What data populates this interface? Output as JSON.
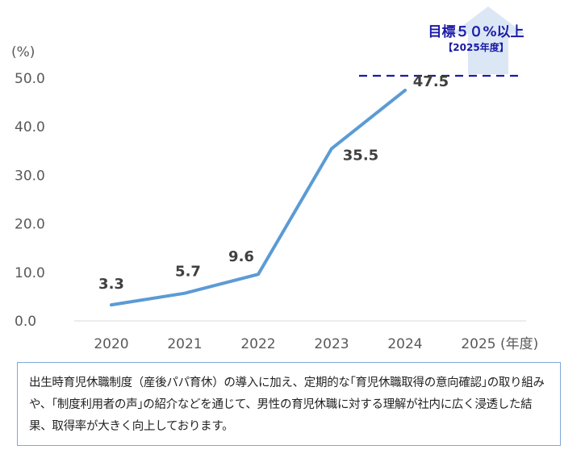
{
  "chart_data": {
    "type": "line",
    "categories": [
      "2020",
      "2021",
      "2022",
      "2023",
      "2024",
      "2025"
    ],
    "series": [
      {
        "values": [
          3.3,
          5.7,
          9.6,
          35.5,
          47.5,
          null
        ]
      }
    ],
    "data_labels": [
      "3.3",
      "5.7",
      "9.6",
      "35.5",
      "47.5"
    ],
    "y_ticks": [
      "0.0",
      "10.0",
      "20.0",
      "30.0",
      "40.0",
      "50.0"
    ],
    "ylim": [
      0,
      50
    ],
    "ylabel": "(%)",
    "xlabel": "(年度)",
    "grid": false,
    "target": {
      "value": 50,
      "title": "目標５０%以上",
      "subtitle": "【2025年度】"
    },
    "colors": {
      "line": "#5b9bd5",
      "target": "#1a1aa6",
      "arrow": "#dbe7f5"
    }
  },
  "note": "出生時育児休職制度（産後パパ育休）の導入に加え、定期的な｢育児休職取得の意向確認｣の取り組みや、｢制度利用者の声｣の紹介などを通じて、男性の育児休職に対する理解が社内に広く浸透した結果、取得率が大きく向上しております。"
}
